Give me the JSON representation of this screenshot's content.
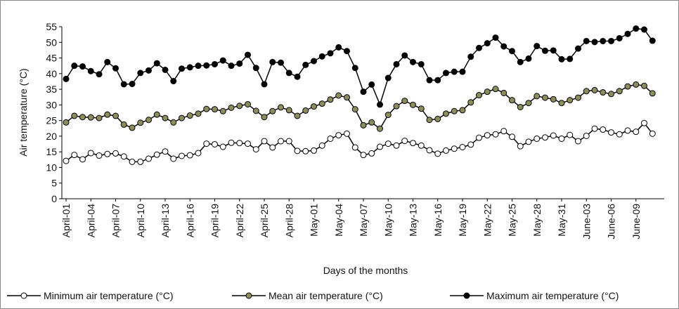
{
  "chart_data": {
    "type": "line",
    "x_label": "Days of the months",
    "y_label": "Air temperature (°C)",
    "categories": [
      "April-01",
      null,
      null,
      "April-04",
      null,
      null,
      "April-07",
      null,
      null,
      "April-10",
      null,
      null,
      "April-13",
      null,
      null,
      "April-16",
      null,
      null,
      "April-19",
      null,
      null,
      "April-22",
      null,
      null,
      "April-25",
      null,
      null,
      "April-28",
      null,
      null,
      "May-01",
      null,
      null,
      "May-04",
      null,
      null,
      "May-07",
      null,
      null,
      "May-10",
      null,
      null,
      "May-13",
      null,
      null,
      "May-16",
      null,
      null,
      "May-19",
      null,
      null,
      "May-22",
      null,
      null,
      "May-25",
      null,
      null,
      "May-28",
      null,
      null,
      "May-31",
      null,
      null,
      "June-03",
      null,
      null,
      "June-06",
      null,
      null,
      "June-09",
      null,
      null
    ],
    "series": [
      {
        "name": "Minimum air temperature (°C)",
        "color": "#ffffff",
        "values": [
          12.1,
          14,
          12.6,
          14.6,
          13.8,
          14.3,
          14.5,
          13.5,
          11.8,
          11.8,
          12.8,
          14.1,
          15.1,
          12.8,
          13.7,
          13.9,
          14.6,
          17.6,
          17.4,
          16.6,
          17.9,
          17.8,
          17.6,
          15.8,
          18.4,
          16.4,
          18.4,
          18.4,
          15.3,
          15.2,
          15.4,
          17,
          19.2,
          20.3,
          20.8,
          16.4,
          14,
          14.5,
          16.6,
          17.6,
          17,
          18.5,
          17.8,
          17,
          15.5,
          14.4,
          15.4,
          16,
          16.5,
          17.3,
          19.5,
          20.3,
          20.6,
          21.6,
          19.8,
          16.8,
          18.2,
          19.2,
          19.6,
          20.2,
          19.2,
          20.4,
          18.4,
          20.1,
          22.4,
          22.1,
          21.2,
          20.6,
          21.8,
          21.4,
          24.2,
          20.8
        ]
      },
      {
        "name": "Mean air temperature (°C)",
        "color": "#8c8c5c",
        "values": [
          24.4,
          26.5,
          26.1,
          26,
          25.8,
          26.9,
          26.5,
          23.7,
          22.7,
          24.3,
          25.2,
          26.9,
          25.8,
          24.4,
          25.8,
          26.6,
          27.2,
          28.7,
          28.6,
          28,
          29.1,
          29.7,
          30.2,
          28.1,
          26.1,
          28,
          29.2,
          28.3,
          26.5,
          28.2,
          29.5,
          30.4,
          31.7,
          33,
          32.4,
          28.6,
          23.5,
          24.4,
          22.4,
          26.8,
          29.6,
          31.3,
          30,
          28.8,
          25.2,
          25.5,
          27.2,
          28,
          28.3,
          30.8,
          33.1,
          34.2,
          35.1,
          33.8,
          31.5,
          29.3,
          30.6,
          32.8,
          32.3,
          31.8,
          30.6,
          31.5,
          32.3,
          34.4,
          34.7,
          34,
          33.5,
          34.4,
          35.9,
          36.5,
          36.1,
          33.7
        ]
      },
      {
        "name": "Maximum air temperature (°C)",
        "color": "#000000",
        "values": [
          38.3,
          42.5,
          42.3,
          40.8,
          39.8,
          43.7,
          41.7,
          36.6,
          36.7,
          40.2,
          41,
          43.3,
          41.2,
          37.6,
          41.6,
          42,
          42.5,
          42.6,
          43,
          44.2,
          42.5,
          43.2,
          46,
          41.8,
          36.6,
          43.7,
          43.5,
          40.2,
          39,
          42.8,
          44,
          45.5,
          46.5,
          48.4,
          47.2,
          41.8,
          34.2,
          36.5,
          30.1,
          38.6,
          43,
          45.8,
          43.7,
          43,
          37.9,
          37.9,
          40.2,
          40.6,
          40.6,
          45.4,
          48.2,
          49.7,
          51.5,
          48.7,
          47.2,
          43.7,
          44.8,
          48.8,
          47.3,
          47.4,
          44.6,
          44.7,
          48,
          50.4,
          50.1,
          50.4,
          50.4,
          51.3,
          52.7,
          54.4,
          54.1,
          50.5
        ]
      }
    ],
    "ylim": [
      0,
      55
    ],
    "yticks": [
      0,
      5,
      10,
      15,
      20,
      25,
      30,
      35,
      40,
      45,
      50,
      55
    ],
    "grid": false,
    "legend": "bottom"
  }
}
